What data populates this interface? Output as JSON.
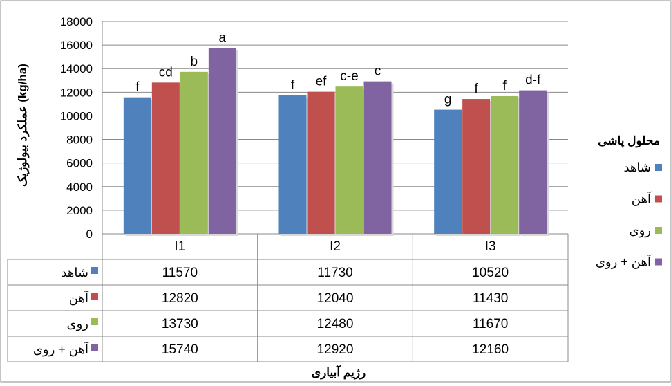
{
  "chart_data": {
    "type": "bar",
    "categories": [
      "I1",
      "I2",
      "I3"
    ],
    "series": [
      {
        "name": "شاهد",
        "values": [
          11570,
          11730,
          10520
        ],
        "letters": [
          "f",
          "f",
          "g"
        ]
      },
      {
        "name": "آهن",
        "values": [
          12820,
          12040,
          11430
        ],
        "letters": [
          "cd",
          "ef",
          "f"
        ]
      },
      {
        "name": "روی",
        "values": [
          13730,
          12480,
          11670
        ],
        "letters": [
          "b",
          "c-e",
          "f"
        ]
      },
      {
        "name": "آهن + روی",
        "values": [
          15740,
          12920,
          12160
        ],
        "letters": [
          "a",
          "c",
          "d-f"
        ]
      }
    ],
    "ylabel": "عملکرد بیولوژیک (kg/ha)",
    "xlabel": "رژیم آبیاری",
    "legend_title": "محلول پاشی",
    "ylim": [
      0,
      18000
    ],
    "yticks": [
      0,
      2000,
      4000,
      6000,
      8000,
      10000,
      12000,
      14000,
      16000,
      18000
    ],
    "grid": true,
    "legend_position": "right",
    "data_table": true,
    "colors": [
      "#4F81BD",
      "#C0504D",
      "#9BBB59",
      "#8064A2"
    ]
  }
}
